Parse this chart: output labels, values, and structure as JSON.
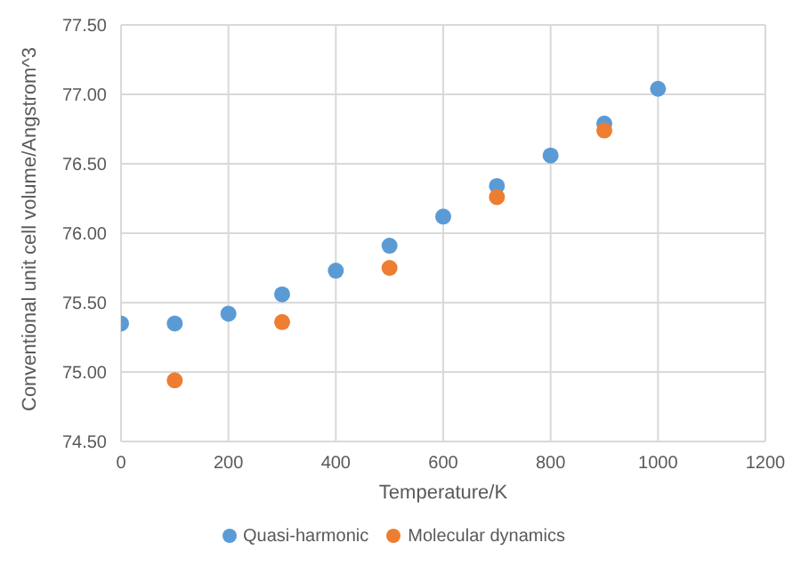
{
  "chart_data": {
    "type": "scatter",
    "xlabel": "Temperature/K",
    "ylabel": "Conventional unit cell volume/Angstrom^3",
    "series": [
      {
        "name": "Quasi-harmonic",
        "color": "#5b9bd5",
        "x": [
          0,
          100,
          200,
          300,
          400,
          500,
          600,
          700,
          800,
          900,
          1000
        ],
        "values": [
          75.35,
          75.35,
          75.42,
          75.56,
          75.73,
          75.91,
          76.12,
          76.34,
          76.56,
          76.79,
          77.04
        ]
      },
      {
        "name": "Molecular dynamics",
        "color": "#ed7d31",
        "x": [
          100,
          300,
          500,
          700,
          900
        ],
        "values": [
          74.94,
          75.36,
          75.75,
          76.26,
          76.74
        ]
      }
    ],
    "xlim": [
      0,
      1200
    ],
    "xticks": [
      0,
      200,
      400,
      600,
      800,
      1000,
      1200
    ],
    "ylim": [
      74.5,
      77.5
    ],
    "yticks": [
      {
        "value": 74.5,
        "label": "74.50"
      },
      {
        "value": 75,
        "label": "75.00"
      },
      {
        "value": 75.5,
        "label": "75.50"
      },
      {
        "value": 76,
        "label": "76.00"
      },
      {
        "value": 76.5,
        "label": "76.50"
      },
      {
        "value": 77,
        "label": "77.00"
      },
      {
        "value": 77.5,
        "label": "77.50"
      }
    ],
    "grid": true,
    "legend": "bottom",
    "marker": "circle"
  }
}
